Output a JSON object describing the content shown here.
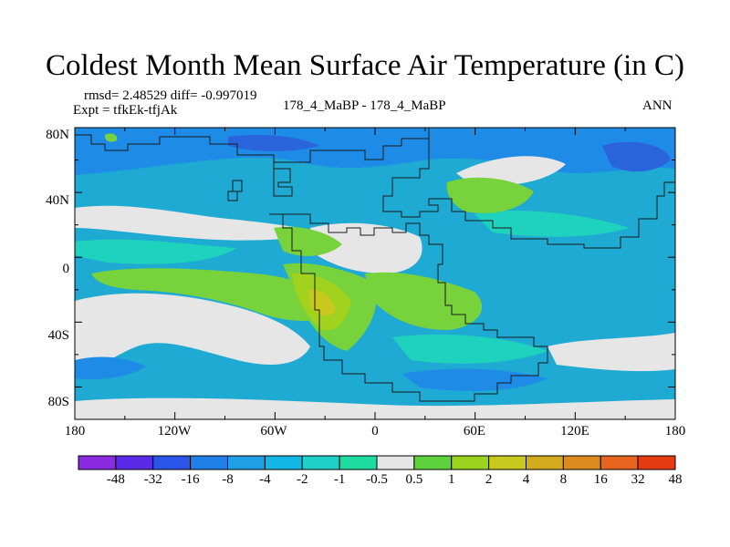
{
  "title": "Coldest Month Mean Surface Air Temperature (in C)",
  "stats": "rmsd= 2.48529 diff= -0.997019",
  "experiment": "Expt = tfkEk-tfjAk",
  "case_label": "178_4_MaBP - 178_4_MaBP",
  "season": "ANN",
  "axes": {
    "lat_labels": [
      "80N",
      "40N",
      "0",
      "40S",
      "80S"
    ],
    "lon_labels": [
      "180",
      "120W",
      "60W",
      "0",
      "60E",
      "120E",
      "180"
    ]
  },
  "colorbar": {
    "colors": [
      "#8a2be2",
      "#5a2ae8",
      "#2a55e6",
      "#1e7fe6",
      "#1e9fe6",
      "#12b7e6",
      "#1ed0c8",
      "#1edca0",
      "#e6e6e6",
      "#5ed23c",
      "#9ad21e",
      "#c8c81e",
      "#d2aa1e",
      "#dc8c1e",
      "#e6641e",
      "#e63c14"
    ],
    "labels": [
      "-48",
      "-32",
      "-16",
      "-8",
      "-4",
      "-2",
      "-1",
      "-0.5",
      "0.5",
      "1",
      "2",
      "4",
      "8",
      "16",
      "32",
      "48"
    ]
  },
  "map_colors": {
    "ocean": "#1eaad2",
    "neutral": "#e6e6e6",
    "cold": "#1e8ce6",
    "very_cold": "#2a64dc",
    "teal": "#1ed2be",
    "green": "#78d23c",
    "yellow_green": "#a0d21e",
    "warm": "#c8c81e",
    "coast": "#1a1a1a"
  }
}
